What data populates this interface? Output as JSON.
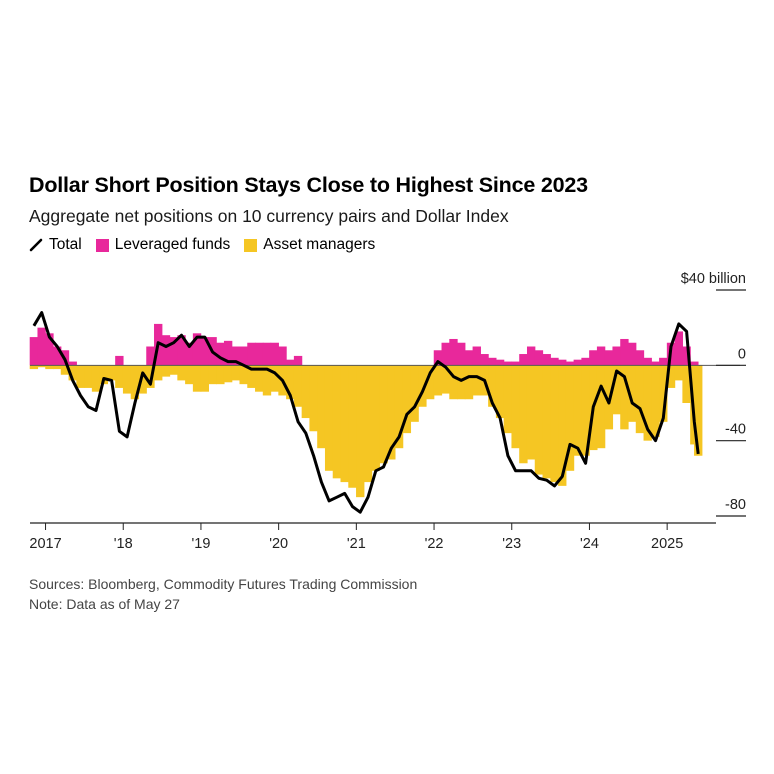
{
  "title": "Dollar Short Position Stays Close to Highest Since 2023",
  "subtitle": "Aggregate net positions on 10 currency pairs and Dollar Index",
  "legend": [
    {
      "label": "Total",
      "color": "#000000",
      "kind": "line"
    },
    {
      "label": "Leveraged funds",
      "color": "#e8289b",
      "kind": "area"
    },
    {
      "label": "Asset managers",
      "color": "#f5c623",
      "kind": "area"
    }
  ],
  "y_unit_label": "$40 billion",
  "footer": {
    "sources": "Sources: Bloomberg, Commodity Futures Trading Commission",
    "note": "Note: Data as of May 27"
  },
  "chart_data": {
    "type": "area",
    "title": "Dollar Short Position Stays Close to Highest Since 2023",
    "subtitle": "Aggregate net positions on 10 currency pairs and Dollar Index",
    "ylim": [
      -80,
      40
    ],
    "y_ticks": [
      40,
      0,
      -40,
      -80
    ],
    "y_tick_labels": [
      "$40 billion",
      "0",
      "-40",
      "-80"
    ],
    "x_ticks": [
      2017,
      2018,
      2019,
      2020,
      2021,
      2022,
      2023,
      2024,
      2025
    ],
    "x_tick_labels": [
      "2017",
      "'18",
      "'19",
      "'20",
      "'21",
      "'22",
      "'23",
      "'24",
      "2025"
    ],
    "xlim": [
      2016.8,
      2025.5
    ],
    "colors": {
      "total": "#000000",
      "leveraged": "#e8289b",
      "asset": "#f5c623",
      "asset_dark": "#f0a020"
    },
    "x": [
      2016.85,
      2016.95,
      2017.05,
      2017.15,
      2017.25,
      2017.35,
      2017.45,
      2017.55,
      2017.65,
      2017.75,
      2017.85,
      2017.95,
      2018.05,
      2018.15,
      2018.25,
      2018.35,
      2018.45,
      2018.55,
      2018.65,
      2018.75,
      2018.85,
      2018.95,
      2019.05,
      2019.15,
      2019.25,
      2019.35,
      2019.45,
      2019.55,
      2019.65,
      2019.75,
      2019.85,
      2019.95,
      2020.05,
      2020.15,
      2020.25,
      2020.35,
      2020.45,
      2020.55,
      2020.65,
      2020.75,
      2020.85,
      2020.95,
      2021.05,
      2021.15,
      2021.25,
      2021.35,
      2021.45,
      2021.55,
      2021.65,
      2021.75,
      2021.85,
      2021.95,
      2022.05,
      2022.15,
      2022.25,
      2022.35,
      2022.45,
      2022.55,
      2022.65,
      2022.75,
      2022.85,
      2022.95,
      2023.05,
      2023.15,
      2023.25,
      2023.35,
      2023.45,
      2023.55,
      2023.65,
      2023.75,
      2023.85,
      2023.95,
      2024.05,
      2024.15,
      2024.25,
      2024.35,
      2024.45,
      2024.55,
      2024.65,
      2024.75,
      2024.85,
      2024.95,
      2025.05,
      2025.15,
      2025.25,
      2025.35,
      2025.4
    ],
    "series": [
      {
        "name": "Leveraged funds",
        "values": [
          15,
          20,
          17,
          10,
          8,
          2,
          0,
          0,
          0,
          0,
          0,
          5,
          0,
          0,
          0,
          10,
          22,
          16,
          15,
          16,
          12,
          17,
          15,
          15,
          12,
          13,
          10,
          10,
          12,
          12,
          12,
          12,
          10,
          3,
          5,
          0,
          0,
          0,
          0,
          0,
          0,
          0,
          0,
          0,
          0,
          0,
          0,
          0,
          0,
          0,
          0,
          0,
          8,
          12,
          14,
          12,
          8,
          10,
          6,
          4,
          3,
          2,
          2,
          6,
          10,
          8,
          6,
          4,
          3,
          2,
          3,
          4,
          8,
          10,
          8,
          10,
          14,
          12,
          8,
          4,
          2,
          4,
          12,
          18,
          10,
          2,
          0
        ]
      },
      {
        "name": "Asset managers",
        "values": [
          -2,
          -1,
          -2,
          -2,
          -5,
          -8,
          -12,
          -12,
          -14,
          -10,
          -8,
          -12,
          -15,
          -18,
          -15,
          -12,
          -8,
          -6,
          -5,
          -8,
          -10,
          -14,
          -14,
          -10,
          -10,
          -9,
          -8,
          -10,
          -12,
          -14,
          -16,
          -14,
          -16,
          -18,
          -22,
          -28,
          -35,
          -44,
          -56,
          -60,
          -62,
          -65,
          -70,
          -62,
          -56,
          -52,
          -50,
          -44,
          -36,
          -30,
          -22,
          -18,
          -16,
          -15,
          -18,
          -18,
          -18,
          -16,
          -16,
          -22,
          -28,
          -36,
          -44,
          -52,
          -50,
          -58,
          -60,
          -62,
          -64,
          -56,
          -48,
          -48,
          -45,
          -44,
          -34,
          -26,
          -34,
          -30,
          -36,
          -40,
          -38,
          -30,
          -12,
          -8,
          -20,
          -42,
          -48
        ]
      },
      {
        "name": "Total",
        "values": [
          21,
          28,
          15,
          10,
          3,
          -8,
          -16,
          -22,
          -24,
          -7,
          -8,
          -35,
          -38,
          -20,
          -4,
          -10,
          12,
          10,
          12,
          16,
          10,
          15,
          15,
          7,
          4,
          2,
          2,
          0,
          -2,
          -2,
          -2,
          -4,
          -8,
          -16,
          -30,
          -36,
          -48,
          -62,
          -72,
          -70,
          -68,
          -75,
          -78,
          -70,
          -56,
          -54,
          -44,
          -38,
          -26,
          -22,
          -14,
          -4,
          2,
          -1,
          -6,
          -8,
          -6,
          -6,
          -8,
          -20,
          -28,
          -48,
          -56,
          -56,
          -56,
          -60,
          -61,
          -64,
          -59,
          -42,
          -44,
          -52,
          -22,
          -11,
          -20,
          -3,
          -6,
          -20,
          -23,
          -34,
          -40,
          -28,
          10,
          22,
          18,
          -30,
          -47
        ]
      }
    ]
  }
}
